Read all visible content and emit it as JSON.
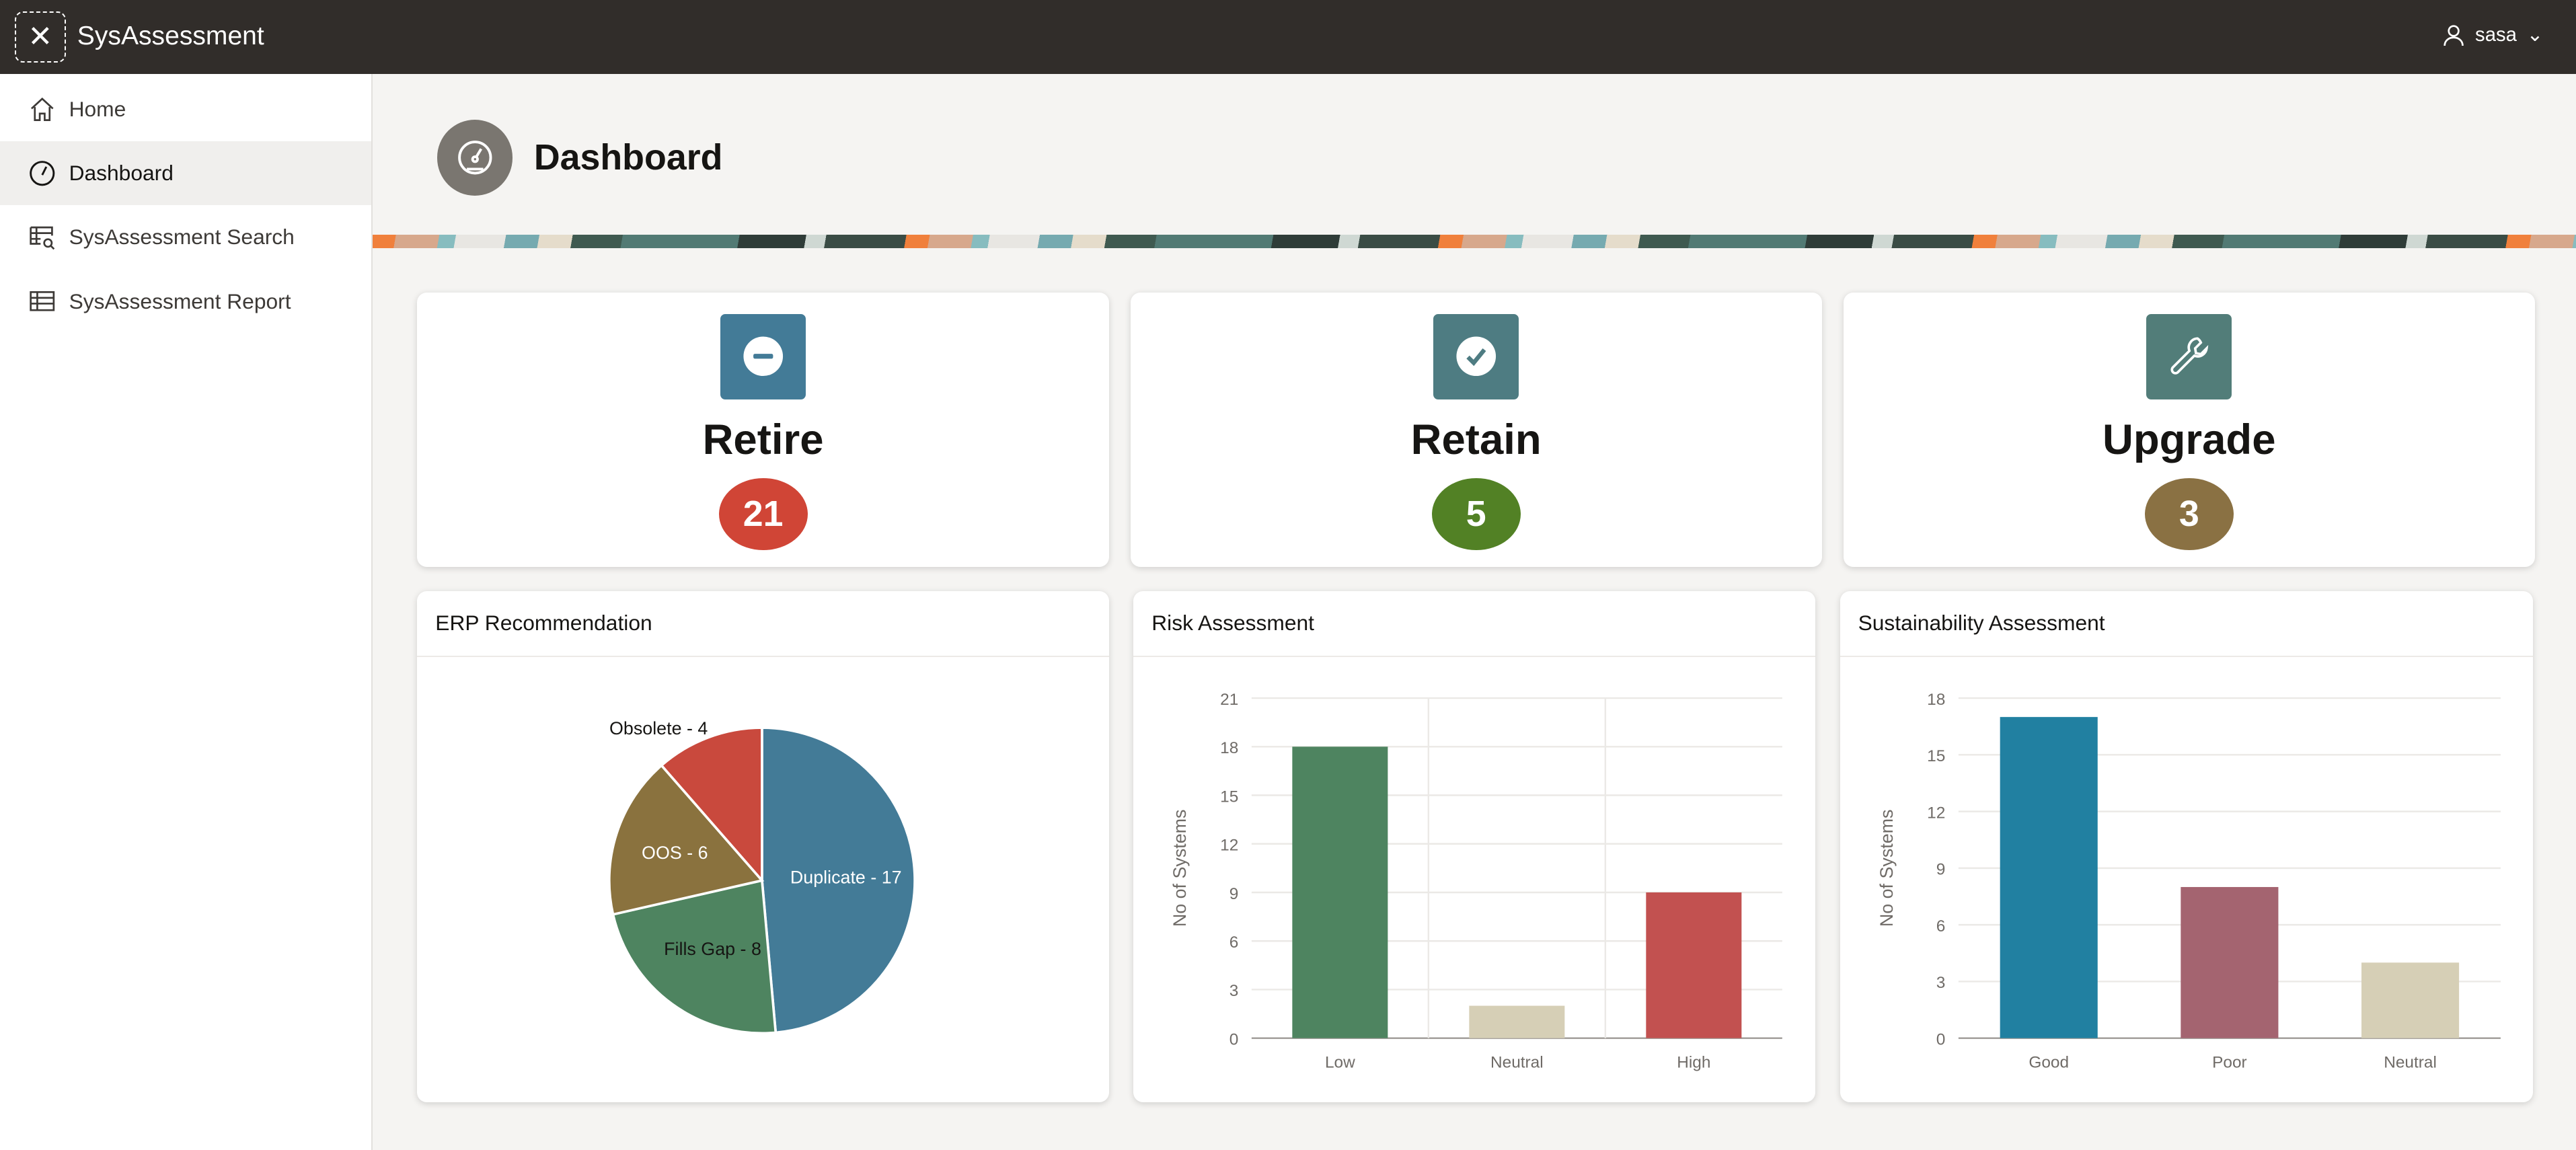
{
  "header": {
    "app_title": "SysAssessment",
    "user": "sasa",
    "close_icon": "close-icon",
    "user_icon": "person-icon"
  },
  "sidebar": {
    "items": [
      {
        "label": "Home",
        "icon": "home-icon",
        "active": false
      },
      {
        "label": "Dashboard",
        "icon": "dashboard-gauge-icon",
        "active": true
      },
      {
        "label": "SysAssessment Search",
        "icon": "table-search-icon",
        "active": false
      },
      {
        "label": "SysAssessment Report",
        "icon": "table-icon",
        "active": false
      }
    ]
  },
  "page": {
    "title": "Dashboard",
    "icon": "dashboard-gauge-icon"
  },
  "kpis": [
    {
      "label": "Retire",
      "value": "21",
      "icon": "minus-circle-icon",
      "icon_color": "#437b97",
      "badge_color": "#d04536"
    },
    {
      "label": "Retain",
      "value": "5",
      "icon": "check-circle-icon",
      "icon_color": "#4e7c82",
      "badge_color": "#528125"
    },
    {
      "label": "Upgrade",
      "value": "3",
      "icon": "wrench-icon",
      "icon_color": "#527d79",
      "badge_color": "#8a7143"
    }
  ],
  "chart_data": [
    {
      "type": "pie",
      "title": "ERP Recommendation",
      "categories": [
        "Duplicate",
        "Fills Gap",
        "OOS",
        "Obsolete"
      ],
      "values": [
        17,
        8,
        6,
        4
      ],
      "labels": [
        "Duplicate - 17",
        "Fills Gap - 8",
        "OOS - 6",
        "Obsolete - 4"
      ],
      "colors": [
        "#437b97",
        "#4e8460",
        "#8a723e",
        "#c9493d"
      ]
    },
    {
      "type": "bar",
      "title": "Risk Assessment",
      "categories": [
        "Low",
        "Neutral",
        "High"
      ],
      "values": [
        18,
        2,
        9
      ],
      "colors": [
        "#4e8460",
        "#d6cfb6",
        "#c25150"
      ],
      "ylabel": "No of Systems",
      "ylim": [
        0,
        21
      ],
      "yticks": [
        "0",
        "3",
        "6",
        "9",
        "12",
        "15",
        "18",
        "21"
      ],
      "grid": true
    },
    {
      "type": "bar",
      "title": "Sustainability Assessment",
      "categories": [
        "Good",
        "Poor",
        "Neutral"
      ],
      "values": [
        17,
        8,
        4
      ],
      "colors": [
        "#2180a1",
        "#a46470",
        "#d6cfb6"
      ],
      "ylabel": "No of Systems",
      "ylim": [
        0,
        18
      ],
      "yticks": [
        "0",
        "3",
        "6",
        "9",
        "12",
        "15",
        "18"
      ],
      "grid": true
    }
  ]
}
